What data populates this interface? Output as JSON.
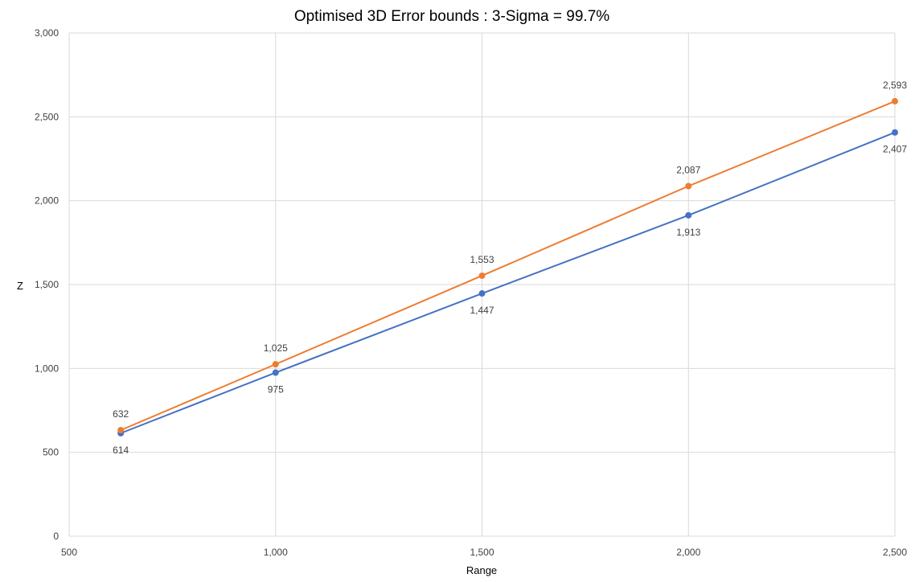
{
  "chart_data": {
    "type": "line",
    "title": "Optimised 3D Error bounds : 3-Sigma = 99.7%",
    "xlabel": "Range",
    "ylabel": "Z",
    "xlim": [
      500,
      2500
    ],
    "ylim": [
      0,
      3000
    ],
    "x_ticks": [
      500,
      1000,
      1500,
      2000,
      2500
    ],
    "x_tick_labels": [
      "500",
      "1,000",
      "1,500",
      "2,000",
      "2,500"
    ],
    "y_ticks": [
      0,
      500,
      1000,
      1500,
      2000,
      2500,
      3000
    ],
    "y_tick_labels": [
      "0",
      "500",
      "1,000",
      "1,500",
      "2,000",
      "2,500",
      "3,000"
    ],
    "grid": true,
    "legend": "none",
    "x": [
      625,
      1000,
      1500,
      2000,
      2500
    ],
    "series": [
      {
        "color": "#4472c4",
        "values": [
          614,
          975,
          1447,
          1913,
          2407
        ],
        "labels": [
          "614",
          "975",
          "1,447",
          "1,913",
          "2,407"
        ],
        "label_position": "below"
      },
      {
        "color": "#ed7d31",
        "values": [
          632,
          1025,
          1553,
          2087,
          2593
        ],
        "labels": [
          "632",
          "1,025",
          "1,553",
          "2,087",
          "2,593"
        ],
        "label_position": "above"
      }
    ]
  }
}
